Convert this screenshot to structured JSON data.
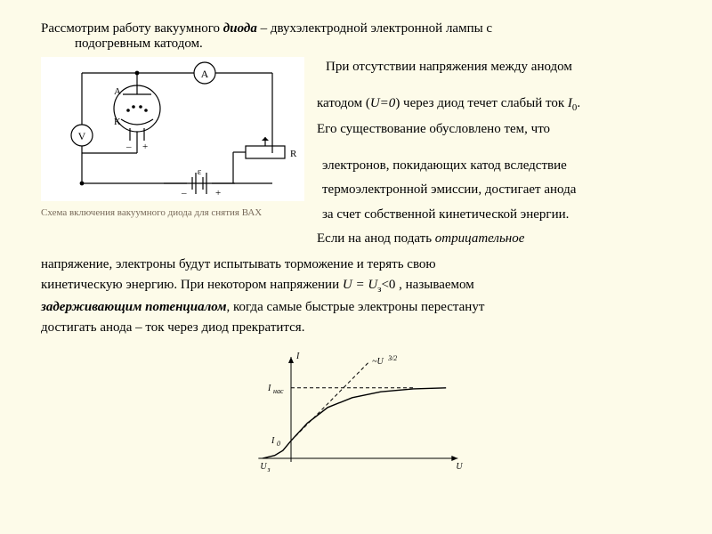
{
  "intro": {
    "line1_pre": "Рассмотрим работу вакуумного ",
    "diode": "диода",
    "line1_post": " – двухэлектродной электронной лампы с",
    "line2": "подогревным катодом."
  },
  "text_col": {
    "p1": "При отсутствии напряжения между анодом",
    "p2_pre": "катодом (",
    "p2_u": "U=0",
    "p2_mid": ") через диод течет слабый ток ",
    "p2_i": "I",
    "p2_sub": "0",
    "p2_post": ".",
    "p3": "Его существование обусловлено тем, что",
    "p4": "электронов, покидающих катод вследствие",
    "p5": "термоэлектронной эмиссии, достигает анода",
    "p6": "за счет собственной кинетической энергии.",
    "p7_pre": "Если на анод подать ",
    "p7_it": "отрицательное"
  },
  "after": {
    "a1": "напряжение, электроны будут испытывать торможение и терять свою",
    "a2_pre": "кинетическую энергию. При некотором напряжении ",
    "a2_u": "U = U",
    "a2_sub": "з",
    "a2_post": "<0 , называемом",
    "a3_it": "задерживающим потенциалом",
    "a3_post": ", когда самые быстрые электроны перестанут",
    "a4": "достигать анода – ток через диод прекратится."
  },
  "caption": "Схема включения вакуумного диода для снятия ВАХ",
  "circuit": {
    "labels": {
      "A": "A",
      "An": "А",
      "K": "К",
      "V": "V",
      "R": "R",
      "eps": "ε",
      "plus": "+",
      "minus": "–"
    },
    "colors": {
      "stroke": "#000000",
      "bg": "#ffffff"
    }
  },
  "chart": {
    "type": "line",
    "background_color": "#fdfbe9",
    "axis_color": "#000000",
    "curve_color": "#000000",
    "dash_pattern": "4,3",
    "axes": {
      "x_label": "U",
      "y_label": "I",
      "y_tick_label": "I",
      "y_tick_sub": "нас",
      "y_I0_label": "I",
      "y_I0_sub": "0",
      "x_neg_label": "U",
      "x_neg_sub": "з",
      "law_label": "~U",
      "law_sup": "3/2"
    },
    "xlim": [
      -40,
      200
    ],
    "ylim": [
      0,
      100
    ],
    "curve_points": [
      [
        -35,
        0
      ],
      [
        -20,
        3
      ],
      [
        -10,
        8
      ],
      [
        0,
        18
      ],
      [
        20,
        36
      ],
      [
        45,
        52
      ],
      [
        75,
        62
      ],
      [
        110,
        68
      ],
      [
        150,
        71
      ],
      [
        190,
        72
      ]
    ],
    "dashed_line_points": [
      [
        0,
        18
      ],
      [
        50,
        60
      ],
      [
        95,
        98
      ]
    ],
    "sat_dash_y": 72,
    "I0_y": 18,
    "fontsize_axis": 10,
    "fontsize_small": 8
  }
}
